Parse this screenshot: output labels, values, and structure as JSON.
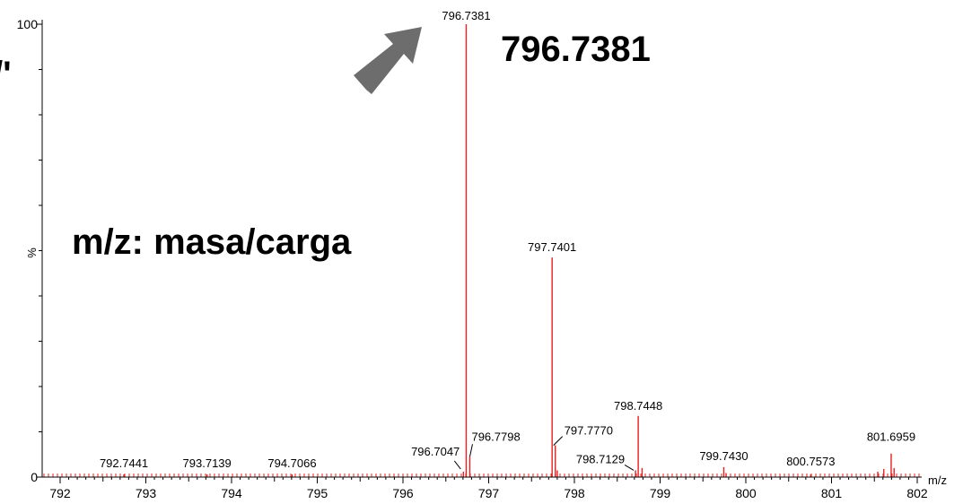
{
  "chart_data": {
    "type": "bar",
    "title": "",
    "xlabel": "m/z",
    "ylabel": "%",
    "xlim": [
      791.8,
      802.2
    ],
    "ylim": [
      0,
      100
    ],
    "x_ticks": [
      "792",
      "793",
      "794",
      "795",
      "796",
      "797",
      "798",
      "799",
      "800",
      "801",
      "802"
    ],
    "y_ticks": [
      "0",
      "100"
    ],
    "grid": false,
    "peaks": [
      {
        "mz": 796.7381,
        "intensity": 100,
        "label": "796.7381"
      },
      {
        "mz": 797.7401,
        "intensity": 48.5,
        "label": "797.7401"
      },
      {
        "mz": 798.7448,
        "intensity": 13.5,
        "label": "798.7448"
      },
      {
        "mz": 797.777,
        "intensity": 7.0,
        "label": "797.7770"
      },
      {
        "mz": 796.7798,
        "intensity": 4.5,
        "label": "796.7798"
      },
      {
        "mz": 801.6959,
        "intensity": 5.2,
        "label": "801.6959"
      },
      {
        "mz": 799.743,
        "intensity": 2.2,
        "label": "799.7430"
      },
      {
        "mz": 796.7047,
        "intensity": 1.2,
        "label": "796.7047"
      },
      {
        "mz": 798.7129,
        "intensity": 1.5,
        "label": "798.7129"
      },
      {
        "mz": 800.7573,
        "intensity": 0.6,
        "label": "800.7573"
      },
      {
        "mz": 792.7441,
        "intensity": 0.6,
        "label": "792.7441"
      },
      {
        "mz": 793.7139,
        "intensity": 0.6,
        "label": "793.7139"
      },
      {
        "mz": 794.7066,
        "intensity": 0.6,
        "label": "794.7066"
      },
      {
        "mz": 801.61,
        "intensity": 1.8,
        "label": ""
      },
      {
        "mz": 801.54,
        "intensity": 1.2,
        "label": ""
      },
      {
        "mz": 798.79,
        "intensity": 2.0,
        "label": ""
      },
      {
        "mz": 797.8,
        "intensity": 1.5,
        "label": ""
      },
      {
        "mz": 799.77,
        "intensity": 0.9,
        "label": ""
      },
      {
        "mz": 801.73,
        "intensity": 2.0,
        "label": ""
      }
    ],
    "annotations": {
      "highlight_value": "796.7381",
      "mz_caption": "m/z: masa/carga",
      "edge_glyph": "/'"
    }
  },
  "colors": {
    "spectrum": "#e8201f",
    "arrow": "#6d6d6d",
    "axis": "#000000"
  }
}
